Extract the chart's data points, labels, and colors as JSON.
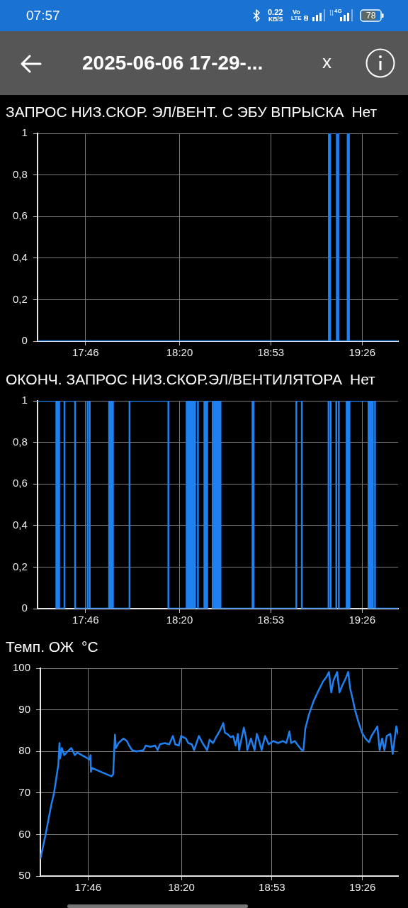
{
  "chart_data": [
    {
      "type": "other",
      "title": "2025-06-06 17-29-...",
      "annotations": [
        "07:57",
        "0.22",
        "KB/S",
        "Vo",
        "LTE",
        "2",
        "4G",
        "78",
        "x"
      ]
    },
    {
      "type": "step",
      "title": "ЗАПРОС НИЗ.СКОР. ЭЛ/ВЕНТ. С ЭБУ ВПРЫСКА",
      "subtitle": "Нет",
      "x": [
        17.477,
        19.233,
        19.241,
        19.281,
        19.29,
        19.346,
        19.354,
        19.65
      ],
      "values": [
        0,
        1,
        0,
        1,
        0,
        1,
        0,
        0
      ],
      "color": "#1f80f0",
      "xlim": [
        17.477,
        19.65
      ],
      "xticks": [
        {
          "value": 17.7667,
          "label": "17:46"
        },
        {
          "value": 18.3333,
          "label": "18:20"
        },
        {
          "value": 18.8833,
          "label": "18:53"
        },
        {
          "value": 19.4333,
          "label": "19:26"
        }
      ],
      "ylim": [
        0,
        1
      ],
      "yticks": [
        0,
        {
          "value": 0.2,
          "label": "0,2"
        },
        {
          "value": 0.4,
          "label": "0,4"
        },
        {
          "value": 0.6,
          "label": "0,6"
        },
        {
          "value": 0.8,
          "label": "0,8"
        },
        1
      ],
      "grid": true
    },
    {
      "type": "step",
      "title": "ОКОНЧ. ЗАПРОС НИЗ.СКОР.ЭЛ/ВЕНТИЛЯТОРА",
      "subtitle": "Нет",
      "x": [
        17.477,
        17.591,
        17.599,
        17.608,
        17.64,
        17.704,
        17.779,
        17.792,
        17.909,
        17.917,
        17.926,
        17.932,
        18.032,
        18.266,
        18.376,
        18.385,
        18.393,
        18.402,
        18.41,
        18.419,
        18.427,
        18.444,
        18.483,
        18.492,
        18.5,
        18.533,
        18.544,
        18.553,
        18.562,
        18.57,
        18.575,
        18.58,
        18.773,
        18.779,
        19.037,
        19.07,
        19.231,
        19.244,
        19.278,
        19.293,
        19.34,
        19.348,
        19.357,
        19.472,
        19.481,
        19.489,
        19.498,
        19.511,
        19.65
      ],
      "values": [
        1,
        0,
        1,
        0,
        1,
        0,
        1,
        0,
        1,
        0,
        1,
        0,
        1,
        0,
        1,
        0,
        1,
        0,
        1,
        0,
        1,
        0,
        1,
        0,
        1,
        0,
        1,
        0,
        1,
        0,
        1,
        0,
        1,
        0,
        1,
        0,
        1,
        0,
        1,
        0,
        1,
        0,
        1,
        0,
        1,
        0,
        1,
        0,
        0
      ],
      "color": "#1f80f0",
      "xlim": [
        17.477,
        19.65
      ],
      "xticks": [
        {
          "value": 17.7667,
          "label": "17:46"
        },
        {
          "value": 18.3333,
          "label": "18:20"
        },
        {
          "value": 18.8833,
          "label": "18:53"
        },
        {
          "value": 19.4333,
          "label": "19:26"
        }
      ],
      "ylim": [
        0,
        1
      ],
      "yticks": [
        0,
        {
          "value": 0.2,
          "label": "0,2"
        },
        {
          "value": 0.4,
          "label": "0,4"
        },
        {
          "value": 0.6,
          "label": "0,6"
        },
        {
          "value": 0.8,
          "label": "0,8"
        },
        1
      ],
      "grid": true
    },
    {
      "type": "line",
      "title": "Темп. ОЖ",
      "subtitle": "°C",
      "x": [
        17.478,
        17.507,
        17.543,
        17.56,
        17.586,
        17.593,
        17.597,
        17.607,
        17.622,
        17.643,
        17.665,
        17.686,
        17.701,
        17.778,
        17.781,
        17.784,
        17.79,
        17.909,
        17.919,
        17.925,
        17.93,
        17.936,
        17.952,
        17.981,
        18.002,
        18.016,
        18.034,
        18.06,
        18.103,
        18.117,
        18.146,
        18.174,
        18.189,
        18.203,
        18.232,
        18.26,
        18.282,
        18.296,
        18.318,
        18.332,
        18.361,
        18.375,
        18.397,
        18.411,
        18.44,
        18.462,
        18.49,
        18.505,
        18.526,
        18.548,
        18.569,
        18.588,
        18.598,
        18.612,
        18.634,
        18.648,
        18.663,
        18.677,
        18.684,
        18.713,
        18.727,
        18.734,
        18.756,
        18.778,
        18.792,
        18.806,
        18.821,
        18.842,
        18.864,
        18.892,
        18.921,
        18.95,
        18.971,
        18.99,
        19.0,
        19.022,
        19.043,
        19.065,
        19.075,
        19.086,
        19.108,
        19.136,
        19.165,
        19.194,
        19.215,
        19.23,
        19.244,
        19.258,
        19.28,
        19.294,
        19.309,
        19.33,
        19.347,
        19.359,
        19.373,
        19.388,
        19.409,
        19.431,
        19.452,
        19.474,
        19.488,
        19.51,
        19.524,
        19.538,
        19.553,
        19.567,
        19.581,
        19.603,
        19.617,
        19.639,
        19.65
      ],
      "values": [
        54.3,
        59.7,
        67.1,
        70.0,
        76.8,
        82.0,
        78.3,
        80.8,
        79.1,
        80.0,
        80.8,
        79.1,
        79.7,
        78.0,
        79.1,
        75.1,
        76.0,
        74.0,
        74.5,
        79.7,
        84.0,
        80.8,
        82.0,
        83.1,
        82.5,
        81.4,
        80.3,
        80.0,
        80.3,
        81.4,
        81.1,
        81.4,
        80.3,
        81.7,
        82.0,
        81.7,
        83.7,
        81.7,
        81.4,
        83.7,
        83.1,
        82.0,
        81.7,
        80.3,
        83.7,
        82.0,
        80.3,
        82.8,
        82.0,
        83.7,
        85.1,
        86.8,
        84.5,
        84.2,
        83.4,
        83.7,
        81.4,
        84.2,
        80.3,
        85.7,
        83.1,
        80.3,
        83.1,
        80.3,
        84.2,
        82.5,
        80.3,
        83.7,
        81.7,
        82.5,
        82.0,
        82.5,
        82.0,
        84.8,
        82.0,
        82.5,
        81.4,
        80.3,
        80.3,
        85.4,
        88.8,
        92.0,
        94.5,
        96.8,
        97.9,
        99.1,
        94.2,
        97.1,
        99.1,
        94.2,
        95.7,
        97.4,
        99.1,
        95.1,
        92.8,
        90.0,
        87.1,
        84.5,
        83.1,
        82.2,
        83.7,
        85.1,
        86.0,
        80.3,
        83.1,
        80.3,
        83.7,
        84.2,
        79.4,
        86.0,
        84.2
      ],
      "color": "#1f80f0",
      "xlim": [
        17.477,
        19.65
      ],
      "xticks": [
        {
          "value": 17.7667,
          "label": "17:46"
        },
        {
          "value": 18.3333,
          "label": "18:20"
        },
        {
          "value": 18.8833,
          "label": "18:53"
        },
        {
          "value": 19.4333,
          "label": "19:26"
        }
      ],
      "ylim": [
        50,
        100
      ],
      "yticks": [
        50,
        60,
        70,
        80,
        90,
        100
      ],
      "grid": true
    }
  ]
}
